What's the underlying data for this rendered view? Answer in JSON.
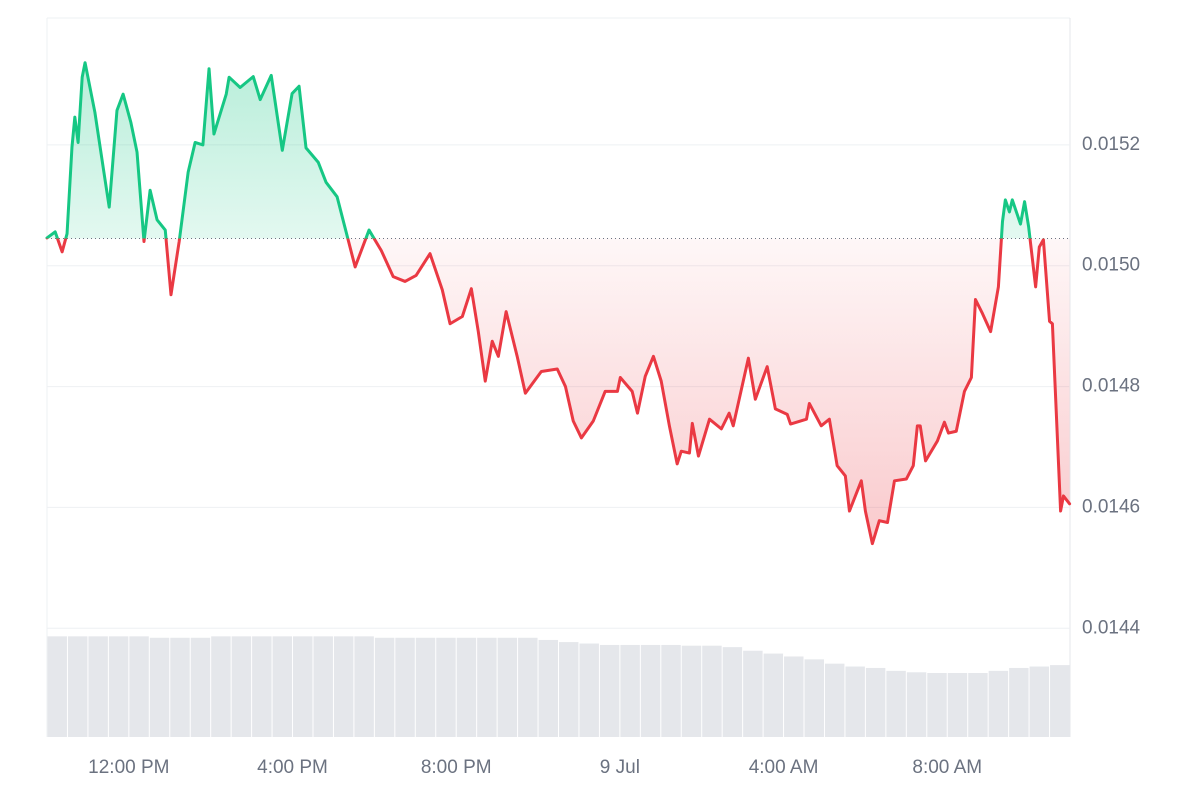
{
  "chart_data": {
    "type": "price-line",
    "x": [
      10.0,
      10.2,
      10.37,
      10.49,
      10.61,
      10.68,
      10.76,
      10.86,
      10.93,
      11.17,
      11.39,
      11.52,
      11.71,
      11.86,
      12.05,
      12.2,
      12.37,
      12.52,
      12.69,
      12.89,
      13.03,
      13.23,
      13.45,
      13.62,
      13.81,
      13.96,
      14.08,
      14.38,
      14.45,
      14.72,
      15.04,
      15.21,
      15.48,
      15.75,
      15.99,
      16.16,
      16.33,
      16.63,
      16.82,
      17.09,
      17.26,
      17.53,
      17.87,
      18.17,
      18.46,
      18.75,
      19.02,
      19.36,
      19.66,
      19.85,
      20.15,
      20.37,
      20.54,
      20.71,
      20.88,
      21.03,
      21.22,
      21.49,
      21.69,
      22.08,
      22.47,
      22.67,
      22.86,
      23.06,
      23.35,
      23.64,
      23.94,
      24.01,
      24.3,
      24.43,
      24.62,
      24.82,
      25.01,
      25.21,
      25.4,
      25.5,
      25.7,
      25.77,
      25.92,
      26.19,
      26.48,
      26.67,
      26.77,
      27.14,
      27.31,
      27.6,
      27.8,
      28.09,
      28.17,
      28.56,
      28.63,
      28.92,
      29.12,
      29.31,
      29.51,
      29.61,
      29.9,
      30.0,
      30.17,
      30.34,
      30.54,
      30.71,
      31.0,
      31.17,
      31.27,
      31.34,
      31.47,
      31.76,
      31.93,
      32.03,
      32.22,
      32.42,
      32.59,
      32.69,
      32.86,
      33.06,
      33.25,
      33.35,
      33.42,
      33.52,
      33.59,
      33.79,
      33.89,
      33.99,
      34.16,
      34.25,
      34.35,
      34.5,
      34.57,
      34.77,
      34.84,
      34.99
    ],
    "values": [
      0.015046,
      0.015056,
      0.015023,
      0.015053,
      0.015196,
      0.015246,
      0.015204,
      0.015312,
      0.015336,
      0.015254,
      0.015155,
      0.015097,
      0.015257,
      0.015284,
      0.015237,
      0.015188,
      0.01504,
      0.015125,
      0.015076,
      0.015059,
      0.014952,
      0.01504,
      0.015155,
      0.015204,
      0.0152,
      0.015326,
      0.015218,
      0.015284,
      0.015312,
      0.015295,
      0.015313,
      0.015275,
      0.015315,
      0.015191,
      0.015285,
      0.015297,
      0.015195,
      0.015171,
      0.015138,
      0.015114,
      0.015069,
      0.014998,
      0.015059,
      0.015025,
      0.014982,
      0.014974,
      0.014984,
      0.01502,
      0.01496,
      0.014904,
      0.014916,
      0.014962,
      0.014891,
      0.014809,
      0.014875,
      0.01485,
      0.014924,
      0.01485,
      0.014789,
      0.014825,
      0.014829,
      0.0148,
      0.014743,
      0.014715,
      0.014743,
      0.014792,
      0.014792,
      0.014815,
      0.014792,
      0.014756,
      0.014817,
      0.01485,
      0.014809,
      0.014735,
      0.014672,
      0.014693,
      0.01469,
      0.014739,
      0.014685,
      0.014746,
      0.01473,
      0.014756,
      0.014735,
      0.014847,
      0.014779,
      0.014833,
      0.014763,
      0.014754,
      0.014738,
      0.014746,
      0.014772,
      0.014735,
      0.014746,
      0.014669,
      0.014652,
      0.014594,
      0.014644,
      0.014594,
      0.01454,
      0.014578,
      0.014575,
      0.014644,
      0.014647,
      0.014669,
      0.014735,
      0.014735,
      0.014677,
      0.01471,
      0.014741,
      0.014723,
      0.014726,
      0.014792,
      0.014815,
      0.014944,
      0.014921,
      0.014891,
      0.014965,
      0.015073,
      0.015109,
      0.015089,
      0.015109,
      0.015069,
      0.015106,
      0.015064,
      0.014965,
      0.015031,
      0.015043,
      0.014908,
      0.014904,
      0.014594,
      0.014619,
      0.014606
    ],
    "baseline": 0.015045,
    "up_color": "#16c784",
    "down_color": "#ea3943",
    "xlim": [
      10,
      35
    ],
    "xticks": [
      {
        "value": 12,
        "label": "12:00 PM"
      },
      {
        "value": 16,
        "label": "4:00 PM"
      },
      {
        "value": 20,
        "label": "8:00 PM"
      },
      {
        "value": 24,
        "label": "9 Jul"
      },
      {
        "value": 28,
        "label": "4:00 AM"
      },
      {
        "value": 32,
        "label": "8:00 AM"
      }
    ],
    "ylim": [
      0.01422,
      0.01541
    ],
    "yticks": [
      0.0144,
      0.0146,
      0.0148,
      {
        "value": 0.015,
        "label": "0.0150"
      },
      0.0152
    ],
    "grid": true,
    "volume": {
      "axis": "y2",
      "color": "#e5e7eb",
      "values": [
        14,
        14,
        14,
        14,
        14,
        13.8,
        13.8,
        13.8,
        14,
        14,
        14,
        14,
        14,
        14,
        14,
        14,
        13.8,
        13.8,
        13.8,
        13.8,
        13.8,
        13.8,
        13.8,
        13.8,
        13.5,
        13.2,
        13,
        12.8,
        12.8,
        12.8,
        12.8,
        12.7,
        12.7,
        12.5,
        12,
        11.6,
        11.2,
        10.8,
        10.2,
        9.8,
        9.6,
        9.2,
        9,
        8.9,
        8.9,
        8.9,
        9.2,
        9.6,
        9.8,
        10
      ]
    },
    "y2lim": [
      0,
      100
    ]
  }
}
